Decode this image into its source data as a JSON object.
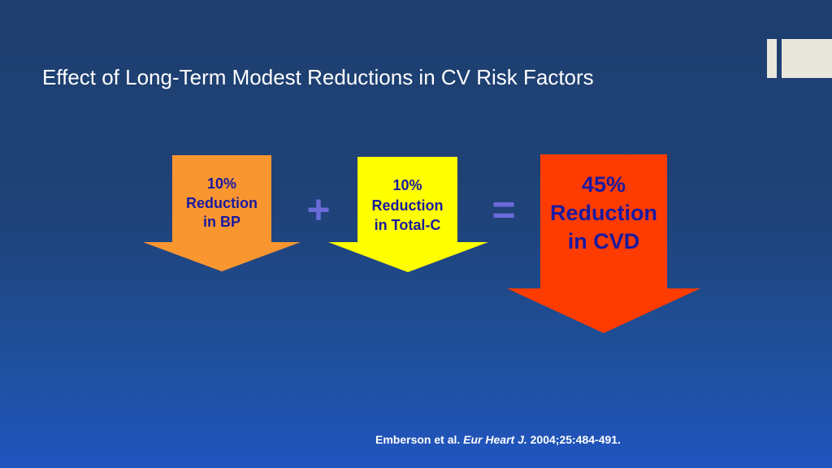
{
  "slide": {
    "title": "Effect of Long-Term Modest Reductions in CV Risk Factors",
    "arrows": [
      {
        "line1": "10%",
        "line2": "Reduction",
        "line3": "in BP",
        "color": "#fa9630",
        "text_color": "#1a1aa0"
      },
      {
        "line1": "10%",
        "line2": "Reduction",
        "line3": "in Total-C",
        "color": "#ffff00",
        "text_color": "#1a1aa0"
      },
      {
        "line1": "45%",
        "line2": "Reduction",
        "line3": "in CVD",
        "color": "#ff3c00",
        "text_color": "#1a1aa0"
      }
    ],
    "operators": {
      "plus": "+",
      "equals": "="
    },
    "citation": {
      "authors": "Emberson et al.",
      "journal": "Eur Heart J.",
      "details": "2004;25:484-491."
    }
  },
  "colors": {
    "operator": "#6a6ad8",
    "decoration": "#e9e6dc"
  }
}
